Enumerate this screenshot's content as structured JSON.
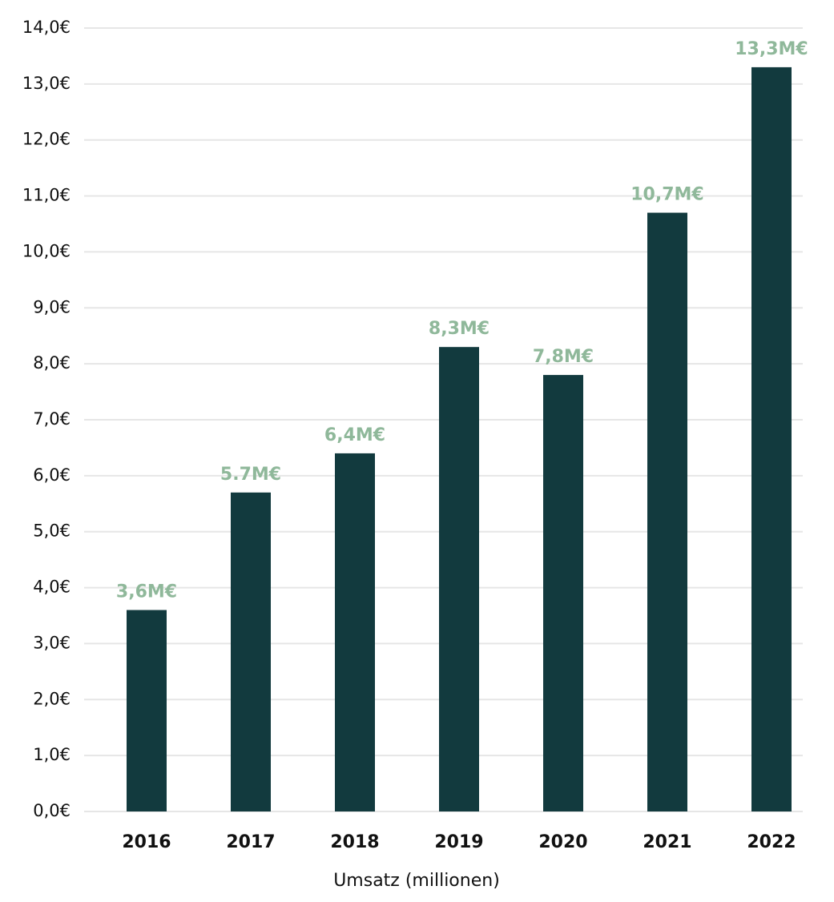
{
  "chart_data": {
    "type": "bar",
    "x_label": "Umsatz (millionen)",
    "categories": [
      "2016",
      "2017",
      "2018",
      "2019",
      "2020",
      "2021",
      "2022"
    ],
    "values": [
      3.6,
      5.7,
      6.4,
      8.3,
      7.8,
      10.7,
      13.3
    ],
    "value_labels": [
      "3,6M€",
      "5.7M€",
      "6,4M€",
      "8,3M€",
      "7,8M€",
      "10,7M€",
      "13,3M€"
    ],
    "color": "#123a3e",
    "label_color": "#8fb89a",
    "ylim": [
      0,
      14
    ],
    "yticks": [
      {
        "value": 0,
        "label": "0,0€"
      },
      {
        "value": 1,
        "label": "1,0€"
      },
      {
        "value": 2,
        "label": "2,0€"
      },
      {
        "value": 3,
        "label": "3,0€"
      },
      {
        "value": 4,
        "label": "4,0€"
      },
      {
        "value": 5,
        "label": "5,0€"
      },
      {
        "value": 6,
        "label": "6,0€"
      },
      {
        "value": 7,
        "label": "7,0€"
      },
      {
        "value": 8,
        "label": "8,0€"
      },
      {
        "value": 9,
        "label": "9,0€"
      },
      {
        "value": 10,
        "label": "10,0€"
      },
      {
        "value": 11,
        "label": "11,0€"
      },
      {
        "value": 12,
        "label": "12,0€"
      },
      {
        "value": 13,
        "label": "13,0€"
      },
      {
        "value": 14,
        "label": "14,0€"
      }
    ],
    "grid": true
  }
}
